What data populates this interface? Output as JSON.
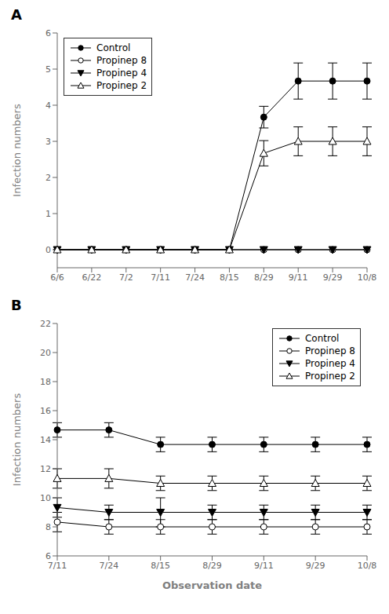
{
  "chart_data": [
    {
      "type": "line",
      "title": "A",
      "ylabel": "Infection numbers",
      "categories": [
        "6/6",
        "6/22",
        "7/2",
        "7/11",
        "7/24",
        "8/15",
        "8/29",
        "9/11",
        "9/29",
        "10/8"
      ],
      "series": [
        {
          "name": "Control",
          "color": "black",
          "marker": "circle",
          "values": [
            0,
            0,
            0,
            0,
            0,
            0,
            3.67,
            4.67,
            4.67,
            4.67
          ],
          "errors": [
            0,
            0,
            0,
            0,
            0,
            0,
            0.3,
            0.5,
            0.5,
            0.5
          ]
        },
        {
          "name": "Propinep 8",
          "color": "black",
          "marker": "circle_open",
          "values": [
            0,
            0,
            0,
            0,
            0,
            0,
            0,
            0,
            0,
            0
          ],
          "errors": [
            0,
            0,
            0,
            0,
            0,
            0,
            0,
            0,
            0,
            0
          ]
        },
        {
          "name": "Propinep 4",
          "color": "black",
          "marker": "triangle_down",
          "values": [
            0,
            0,
            0,
            0,
            0,
            0,
            0,
            0,
            0,
            0
          ],
          "errors": [
            0,
            0,
            0,
            0,
            0,
            0,
            0,
            0,
            0,
            0
          ]
        },
        {
          "name": "Propinep 2",
          "color": "black",
          "marker": "triangle_up_open",
          "values": [
            0,
            0,
            0,
            0,
            0,
            0,
            2.67,
            3.0,
            3.0,
            3.0
          ],
          "errors": [
            0,
            0,
            0,
            0,
            0,
            0,
            0.35,
            0.4,
            0.4,
            0.4
          ]
        }
      ],
      "ylim": [
        -0.5,
        6
      ],
      "yticks": [
        0,
        1,
        2,
        3,
        4,
        5,
        6
      ],
      "legend": "upper left"
    },
    {
      "type": "line",
      "title": "B",
      "ylabel": "Infection numbers",
      "xlabel": "Observation date",
      "categories": [
        "7/11",
        "7/24",
        "8/15",
        "8/29",
        "9/11",
        "9/29",
        "10/8"
      ],
      "series": [
        {
          "name": "Control",
          "color": "black",
          "marker": "circle",
          "values": [
            14.67,
            14.67,
            13.67,
            13.67,
            13.67,
            13.67,
            13.67
          ],
          "errors": [
            0.5,
            0.5,
            0.5,
            0.5,
            0.5,
            0.5,
            0.5
          ]
        },
        {
          "name": "Propinep 8",
          "color": "black",
          "marker": "circle_open",
          "values": [
            8.33,
            8.0,
            8.0,
            8.0,
            8.0,
            8.0,
            8.0
          ],
          "errors": [
            0.67,
            0.5,
            0.5,
            0.5,
            0.5,
            0.5,
            0.5
          ]
        },
        {
          "name": "Propinep 4",
          "color": "black",
          "marker": "triangle_down",
          "values": [
            9.33,
            9.0,
            9.0,
            9.0,
            9.0,
            9.0,
            9.0
          ],
          "errors": [
            0.67,
            0.5,
            1.0,
            0.5,
            0.5,
            0.5,
            0.5
          ]
        },
        {
          "name": "Propinep 2",
          "color": "black",
          "marker": "triangle_up_open",
          "values": [
            11.33,
            11.33,
            11.0,
            11.0,
            11.0,
            11.0,
            11.0
          ],
          "errors": [
            0.67,
            0.67,
            0.5,
            0.5,
            0.5,
            0.5,
            0.5
          ]
        }
      ],
      "ylim": [
        6,
        22
      ],
      "yticks": [
        6,
        8,
        10,
        12,
        14,
        16,
        18,
        20,
        22
      ],
      "legend": "upper right"
    }
  ]
}
